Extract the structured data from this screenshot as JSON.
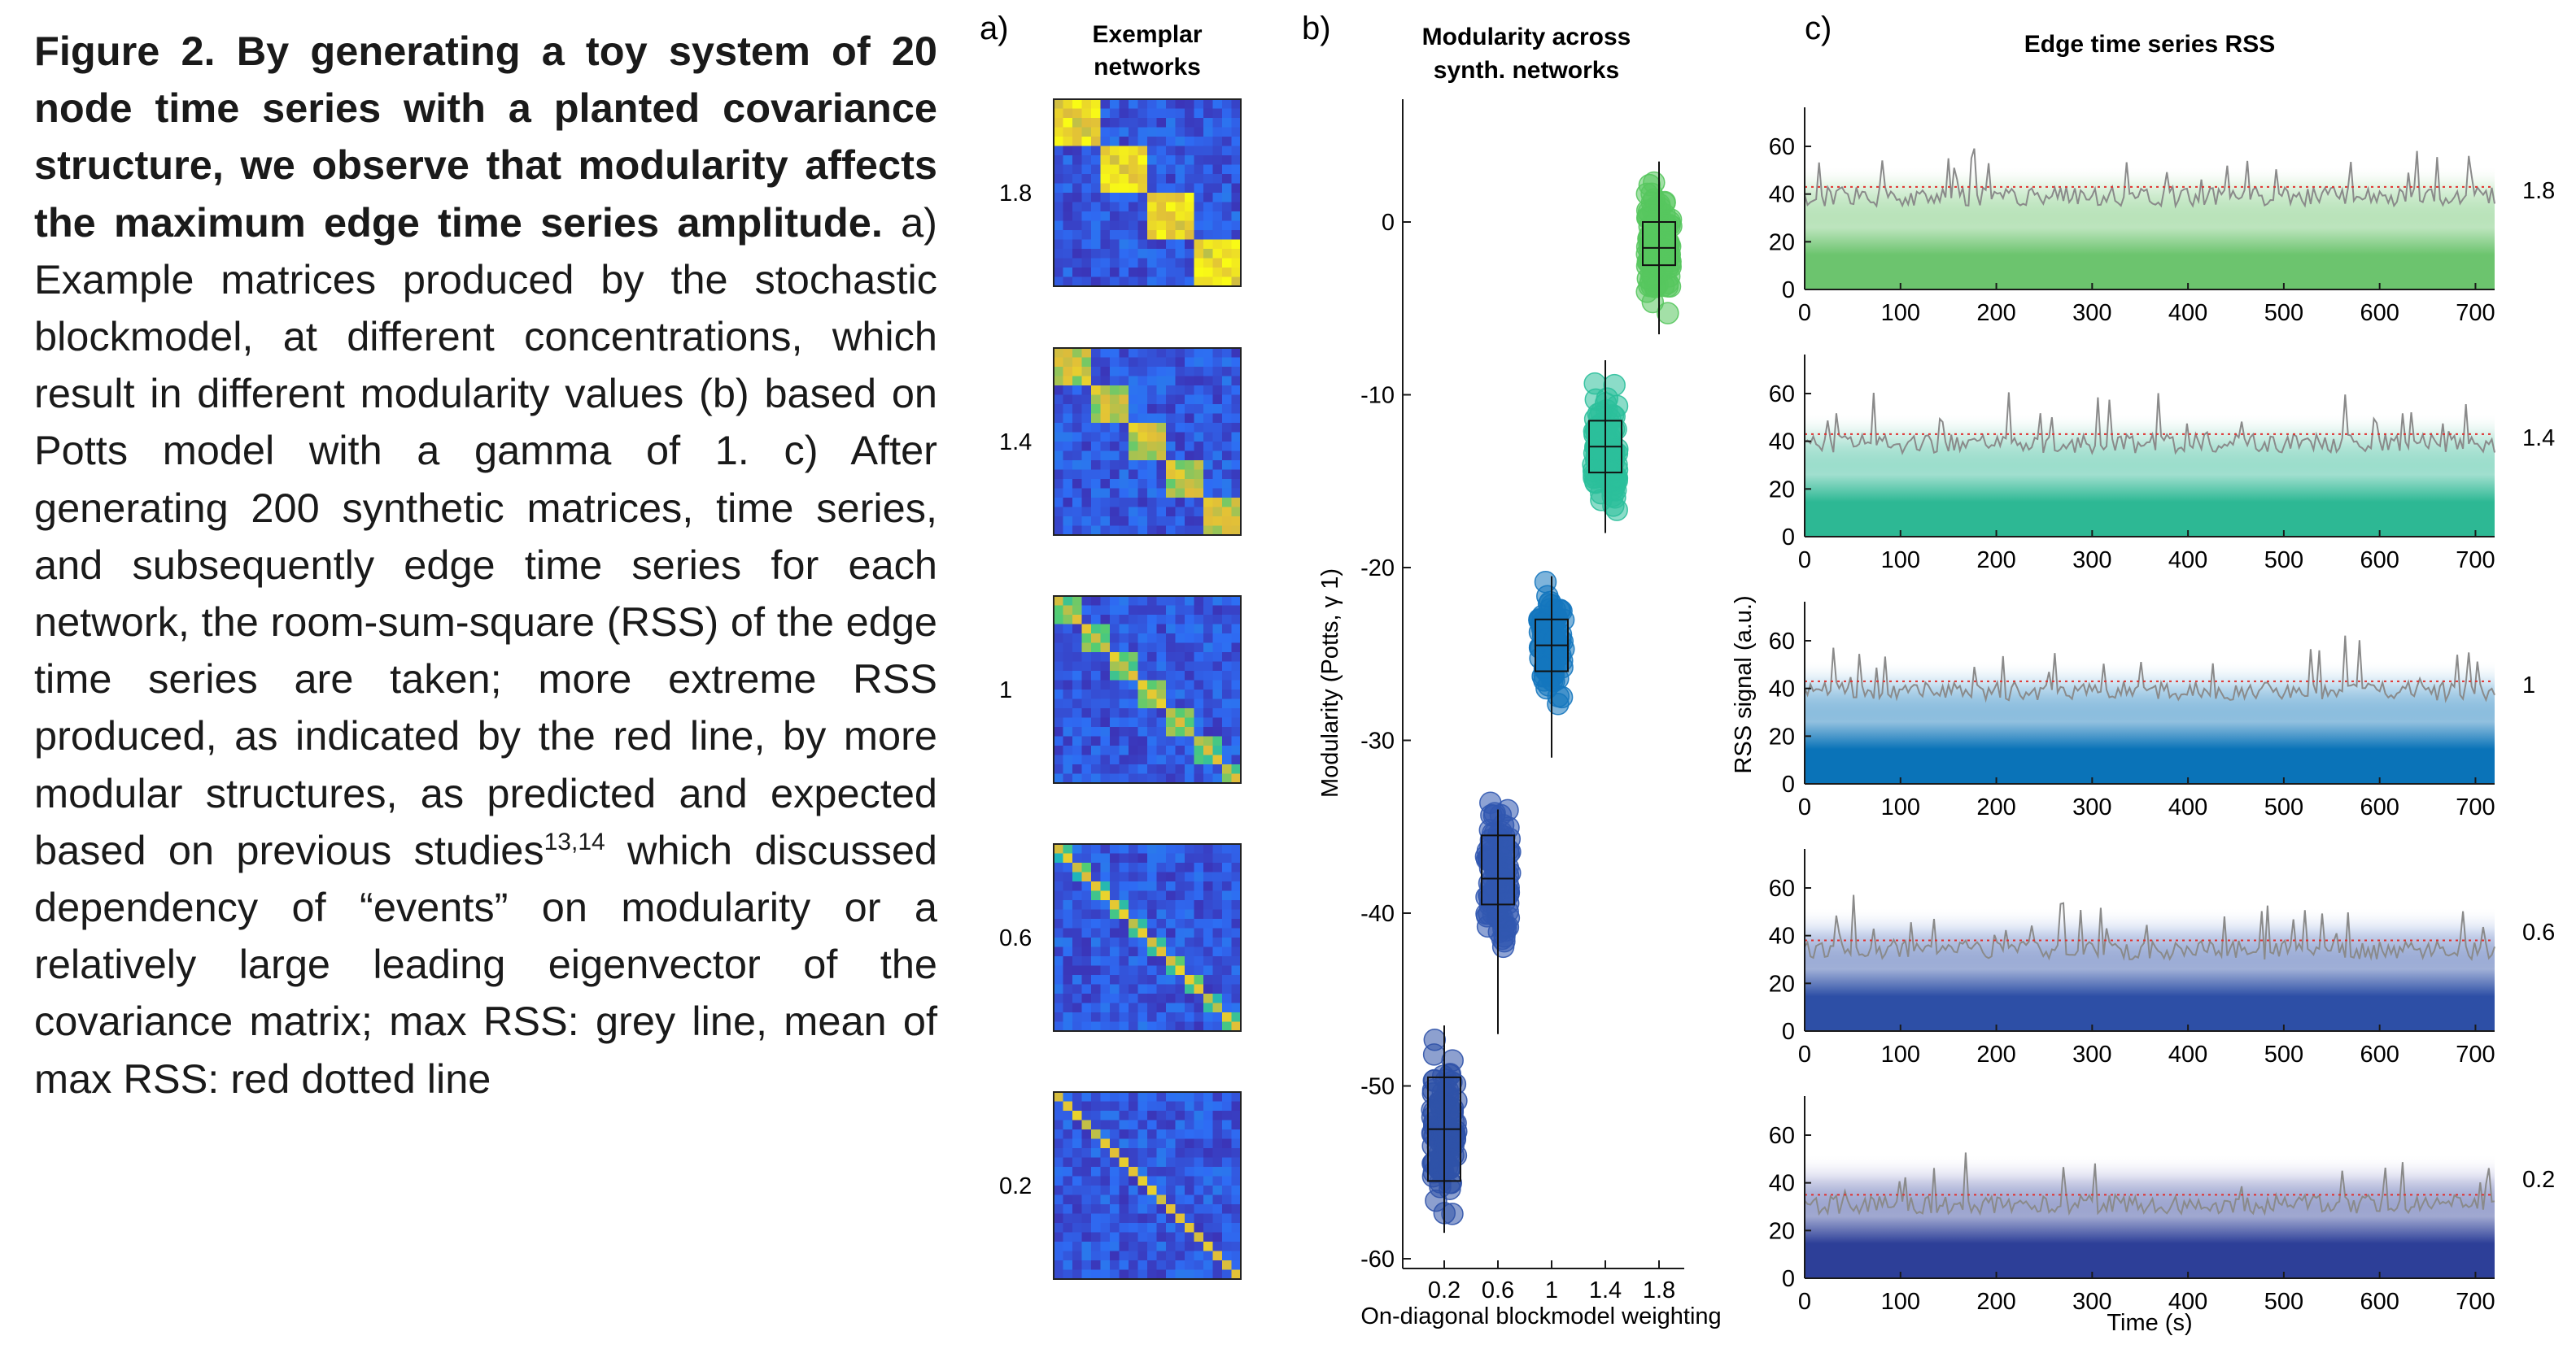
{
  "caption": {
    "bold": "Figure 2. By generating a toy system of 20 node time series with a planted co­variance structure, we observe that modularity affects the maximum edge time series amplitude.",
    "text_a": " a) Example matri­ces produced by the stochastic blockmod­el, at different concentrations, which result in different modularity values (b) based on Potts model with a gamma of 1. c) After generating 200 synthetic matrices, time series, and subsequently edge time series for each network, the room-sum-square (RSS) of the edge time series are taken; more extreme RSS produced, as indicated by the red line, by more modular struc­tures, as predicted and expected based on previous studies",
    "refs": "13,14",
    "text_b": " which discussed de­pendency of “events” on modularity or a relatively large leading eigenvector of the covariance matrix; max RSS: grey line, mean of max RSS: red dotted line"
  },
  "panel_a": {
    "letter": "a)",
    "title_line1": "Exemplar",
    "title_line2": "networks",
    "rows": [
      "1.8",
      "1.4",
      "1",
      "0.6",
      "0.2"
    ],
    "colormap": [
      "#3e26a8",
      "#2e6cf4",
      "#16b1c7",
      "#52cc73",
      "#e0bc3a",
      "#f9fb15"
    ]
  },
  "panel_b": {
    "letter": "b)",
    "title_line1": "Modularity across",
    "title_line2": "synth. networks"
  },
  "panel_c": {
    "letter": "c)",
    "title": "Edge time series RSS"
  },
  "chart_data": [
    {
      "type": "scatter",
      "title": "Modularity across synth. networks",
      "xlabel": "On-diagonal blockmodel weighting",
      "ylabel": "Modularity (Potts, γ 1)",
      "categories": [
        "0.2",
        "0.6",
        "1",
        "1.4",
        "1.8"
      ],
      "yticks": [
        0,
        -10,
        -20,
        -30,
        -40,
        -50,
        -60
      ],
      "ylim": [
        -62,
        4
      ],
      "grid": false,
      "colors": [
        "#2f52a8",
        "#3158b0",
        "#1476be",
        "#2bbf9b",
        "#57c75e"
      ],
      "boxes": [
        {
          "x": "0.2",
          "min": -58.5,
          "q1": -55.5,
          "median": -52.5,
          "q3": -49.5,
          "max": -46.5
        },
        {
          "x": "0.6",
          "min": -47.0,
          "q1": -39.5,
          "median": -38.0,
          "q3": -35.5,
          "max": -34.0
        },
        {
          "x": "1",
          "min": -31.0,
          "q1": -26.0,
          "median": -24.5,
          "q3": -23.0,
          "max": -20.5
        },
        {
          "x": "1.4",
          "min": -18.0,
          "q1": -14.5,
          "median": -13.0,
          "q3": -11.5,
          "max": -8.0
        },
        {
          "x": "1.8",
          "min": -6.5,
          "q1": -2.5,
          "median": -1.5,
          "q3": 0.0,
          "max": 3.5
        }
      ]
    },
    {
      "type": "line",
      "title": "Edge time series RSS",
      "xlabel": "Time (s)",
      "ylabel": "RSS signal (a.u.)",
      "xticks": [
        0,
        100,
        200,
        300,
        400,
        500,
        600,
        700
      ],
      "yticks": [
        0,
        20,
        40,
        60
      ],
      "xlim": [
        0,
        720
      ],
      "ylim": [
        0,
        75
      ],
      "rows": [
        {
          "label": "1.8",
          "mean_max": 43,
          "color": "#6cc46e",
          "light": "#dff2df"
        },
        {
          "label": "1.4",
          "mean_max": 43,
          "color": "#2db894",
          "light": "#d6f0e8"
        },
        {
          "label": "1",
          "mean_max": 43,
          "color": "#0a73b8",
          "light": "#d3e7f4"
        },
        {
          "label": "0.6",
          "mean_max": 38,
          "color": "#2d4fa6",
          "light": "#dbe3f4"
        },
        {
          "label": "0.2",
          "mean_max": 35,
          "color": "#2d3f98",
          "light": "#e0e1f1"
        }
      ],
      "series": [
        {
          "name": "max RSS",
          "color": "#888888"
        },
        {
          "name": "mean of max RSS",
          "color": "#e0302e",
          "style": "dotted"
        }
      ]
    }
  ]
}
